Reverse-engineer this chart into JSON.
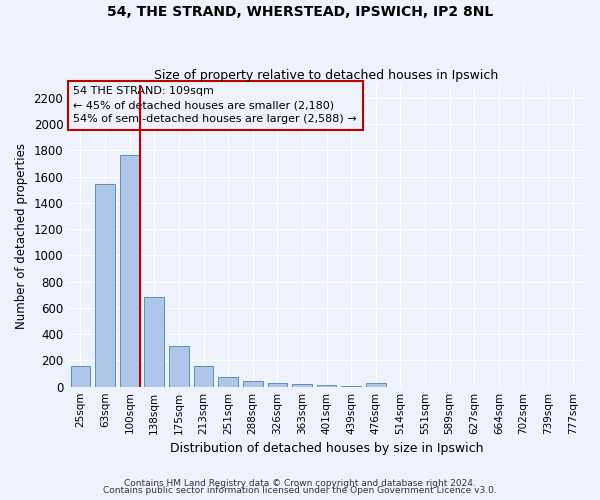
{
  "title1": "54, THE STRAND, WHERSTEAD, IPSWICH, IP2 8NL",
  "title2": "Size of property relative to detached houses in Ipswich",
  "xlabel": "Distribution of detached houses by size in Ipswich",
  "ylabel": "Number of detached properties",
  "categories": [
    "25sqm",
    "63sqm",
    "100sqm",
    "138sqm",
    "175sqm",
    "213sqm",
    "251sqm",
    "288sqm",
    "326sqm",
    "363sqm",
    "401sqm",
    "439sqm",
    "476sqm",
    "514sqm",
    "551sqm",
    "589sqm",
    "627sqm",
    "664sqm",
    "702sqm",
    "739sqm",
    "777sqm"
  ],
  "values": [
    155,
    1540,
    1760,
    680,
    310,
    155,
    75,
    40,
    25,
    18,
    10,
    5,
    25,
    0,
    0,
    0,
    0,
    0,
    0,
    0,
    0
  ],
  "bar_color": "#aec6e8",
  "bar_edge_color": "#5a8fc0",
  "highlight_color": "#c00000",
  "annotation_line1": "54 THE STRAND: 109sqm",
  "annotation_line2": "← 45% of detached houses are smaller (2,180)",
  "annotation_line3": "54% of semi-detached houses are larger (2,588) →",
  "ylim": [
    0,
    2300
  ],
  "yticks": [
    0,
    200,
    400,
    600,
    800,
    1000,
    1200,
    1400,
    1600,
    1800,
    2000,
    2200
  ],
  "footer1": "Contains HM Land Registry data © Crown copyright and database right 2024.",
  "footer2": "Contains public sector information licensed under the Open Government Licence v3.0.",
  "bg_color": "#eef2fa",
  "grid_color": "#ffffff",
  "red_line_bar_index": 2,
  "red_line_side": "right"
}
